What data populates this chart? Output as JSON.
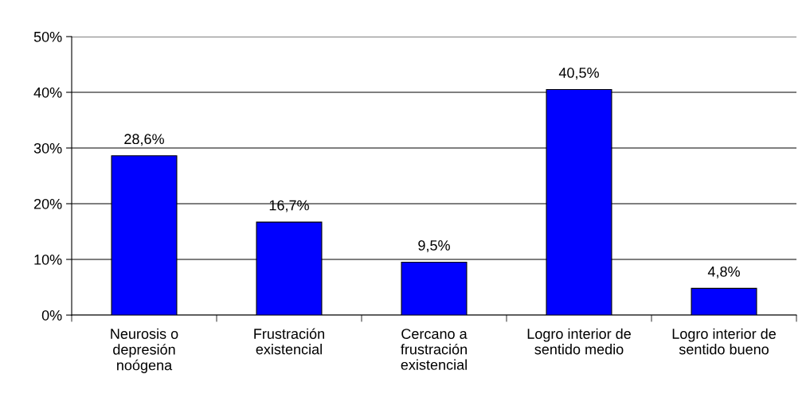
{
  "chart_data": {
    "type": "bar",
    "categories": [
      "Neurosis o\ndepresión\nnoógena",
      "Frustración\nexistencial",
      "Cercano a\nfrustración\nexistencial",
      "Logro interior de\nsentido medio",
      "Logro interior de\nsentido bueno"
    ],
    "values": [
      28.6,
      16.7,
      9.5,
      40.5,
      4.8
    ],
    "value_labels": [
      "28,6%",
      "16,7%",
      "9,5%",
      "40,5%",
      "4,8%"
    ],
    "color": "#0000ff",
    "ylim": [
      0,
      50
    ],
    "yticks": [
      {
        "value": 0,
        "label": "0%"
      },
      {
        "value": 10,
        "label": "10%"
      },
      {
        "value": 20,
        "label": "20%"
      },
      {
        "value": 30,
        "label": "30%"
      },
      {
        "value": 40,
        "label": "40%"
      },
      {
        "value": 50,
        "label": "50%"
      }
    ],
    "grid": "y",
    "legend": false
  }
}
